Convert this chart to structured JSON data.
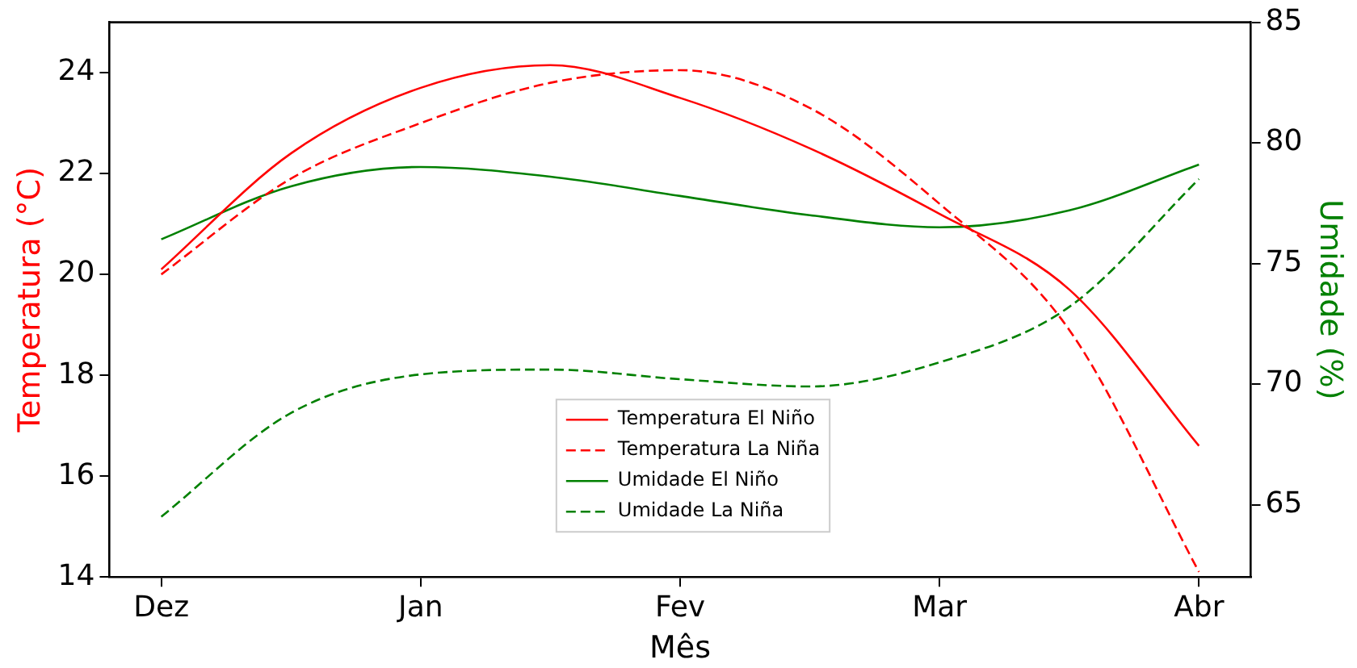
{
  "chart_data": {
    "type": "line",
    "xlabel": "Mês",
    "ylabel": "Temperatura (°C)",
    "y2label": "Umidade (%)",
    "categories": [
      "Dez",
      null,
      "Jan",
      null,
      "Fev",
      null,
      "Mar",
      null,
      "Abr"
    ],
    "ylim": [
      14,
      25
    ],
    "yticks": [
      14,
      16,
      18,
      20,
      22,
      24
    ],
    "y2lim": [
      62,
      85
    ],
    "y2ticks": [
      65,
      70,
      75,
      80,
      85
    ],
    "grid": false,
    "legend": "bottom",
    "marker": "none",
    "series": [
      {
        "name": "Temperatura El Niño",
        "color": "#ff0000",
        "line_style": "solid",
        "values": [
          20.1,
          22.4,
          23.7,
          24.15,
          23.5,
          22.5,
          21.2,
          19.7,
          16.6
        ]
      },
      {
        "name": "Temperatura La Niña",
        "color": "#ff0000",
        "line_style": "dashed",
        "values": [
          20.0,
          21.9,
          23.0,
          23.8,
          24.05,
          23.3,
          21.4,
          18.9,
          14.1
        ]
      },
      {
        "name": "Umidade El Niño",
        "color": "#008000",
        "line_style": "solid",
        "axis": "y2",
        "values": [
          76.0,
          78.2,
          79.0,
          78.6,
          77.8,
          77.0,
          76.5,
          77.2,
          79.1
        ]
      },
      {
        "name": "Umidade La Niña",
        "color": "#008000",
        "line_style": "dashed",
        "axis": "y2",
        "values": [
          64.5,
          68.8,
          70.4,
          70.6,
          70.2,
          69.9,
          70.9,
          73.2,
          78.5
        ]
      }
    ]
  }
}
